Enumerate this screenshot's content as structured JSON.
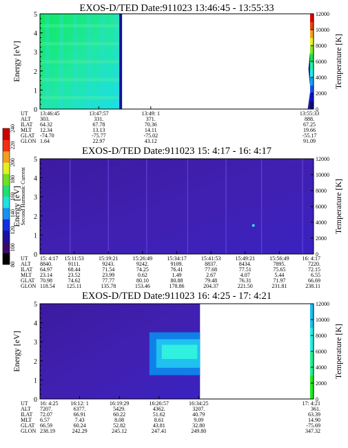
{
  "chart_data": [
    {
      "type": "heatmap",
      "title": "EXOS-D/TED   Date:911023  13:46:45 - 13:55:33",
      "ylabel": "Energy [eV]",
      "ylim": [
        0,
        5
      ],
      "y_ticks": [
        "0",
        "1",
        "2",
        "3",
        "4",
        "5"
      ],
      "right_label": "Temperature [K]",
      "right_ylim": [
        0,
        12000
      ],
      "right_ticks": [
        "0",
        "2000",
        "4000",
        "6000",
        "8000",
        "10000",
        "12000"
      ],
      "colorbar_colors": [
        "#0a0a7a",
        "#1010c8",
        "#1a4cf0",
        "#16a0f0",
        "#1cf0ee",
        "#20f0a0",
        "#20e040",
        "#80e820",
        "#e8f020",
        "#f0a020",
        "#f04010",
        "#e00000"
      ],
      "colorbar_fraction": 0.05,
      "fill_end_fraction": 0.3,
      "fill_colors": [
        "#10e860",
        "#20e8a0",
        "#18e0e8"
      ],
      "temperature_trace": true,
      "row_labels": [
        "UT",
        "ALT",
        "ILAT",
        "MLT",
        "GLAT",
        "GLON"
      ],
      "rows": [
        [
          "13:46:45",
          "13:47:57",
          "13:49:  1",
          "13:55:33"
        ],
        [
          "303.",
          "331.",
          "371.",
          "888."
        ],
        [
          "64.32",
          "67.78",
          "70.36",
          "67.25"
        ],
        [
          "12.34",
          "13.13",
          "14.11",
          "19.66"
        ],
        [
          "-74.70",
          "-75.77",
          "-75.02",
          "-55.17"
        ],
        [
          "1.64",
          "22.97",
          "43.12",
          "91.09"
        ]
      ],
      "row_positions": [
        0,
        0.215,
        0.405,
        0.985
      ]
    },
    {
      "type": "heatmap",
      "title": "EXOS-D/TED   Date:911023  15: 4:17 - 16: 4:17",
      "ylabel": "Energy [eV]",
      "ylim": [
        0,
        5
      ],
      "y_ticks": [
        "0",
        "1",
        "2",
        "3",
        "4",
        "5"
      ],
      "right_label": "Temperature [K]",
      "right_ylim": [
        0,
        12000
      ],
      "right_ticks": [
        "0",
        "2000",
        "4000",
        "6000",
        "8000",
        "10000",
        "12000"
      ],
      "fill_end_fraction": 1.0,
      "fill_colors": [
        "#3c1aa0",
        "#4020b0",
        "#3a22c0"
      ],
      "row_labels": [
        "UT",
        "ALT",
        "ILAT",
        "MLT",
        "GLAT",
        "GLON"
      ],
      "rows": [
        [
          "15: 4:17",
          "15:11:53",
          "15:19:21",
          "15:26:49",
          "15:34:17",
          "15:41:53",
          "15:49:21",
          "15:56:49",
          "16: 4:17"
        ],
        [
          "8840.",
          "9111.",
          "9243.",
          "9242.",
          "9109.",
          "8837.",
          "8434.",
          "7895.",
          "7220."
        ],
        [
          "64.97",
          "68.44",
          "71.54",
          "74.25",
          "76.41",
          "77.68",
          "77.51",
          "75.65",
          "72.15"
        ],
        [
          "23.14",
          "23.52",
          "23.99",
          "0.62",
          "1.49",
          "2.67",
          "4.07",
          "5.44",
          "6.55"
        ],
        [
          "70.98",
          "74.62",
          "77.77",
          "80.10",
          "80.88",
          "79.48",
          "76.31",
          "71.97",
          "66.69"
        ],
        [
          "118.54",
          "125.11",
          "135.78",
          "153.46",
          "178.86",
          "204.37",
          "221.50",
          "231.81",
          "238.11"
        ]
      ],
      "row_positions": [
        0,
        0.125,
        0.25,
        0.375,
        0.5,
        0.625,
        0.75,
        0.875,
        1
      ]
    },
    {
      "type": "heatmap",
      "title": "EXOS-D/TED   Date:911023  16: 4:25 - 17: 4:21",
      "ylabel": "Energy [eV]",
      "ylim": [
        0,
        5
      ],
      "y_ticks": [
        "0",
        "1",
        "2",
        "3",
        "4",
        "5"
      ],
      "right_label": "Temperature [K]",
      "right_ylim": [
        0,
        12000
      ],
      "right_ticks": [
        "0",
        "2000",
        "4000",
        "6000",
        "8000",
        "10000",
        "12000"
      ],
      "fill_end_fraction": 0.585,
      "fill_colors": [
        "#3c1aa0",
        "#4020b0",
        "#3a22c0"
      ],
      "colorbar_colors": [
        "#20e820",
        "#20f090",
        "#20f0e0",
        "#18c0f0"
      ],
      "colorbar_fraction": 0.05,
      "row_labels": [
        "UT",
        "ALT",
        "ILAT",
        "MLT",
        "GLAT",
        "GLON"
      ],
      "rows": [
        [
          "16: 4:25",
          "16:12:  1",
          "16:19:29",
          "16:26:57",
          "16:34:25",
          "17: 4:21"
        ],
        [
          "7207.",
          "6377.",
          "5429.",
          "4362.",
          "3207.",
          "361."
        ],
        [
          "72.07",
          "66.91",
          "60.22",
          "51.62",
          "40.79",
          "63.39"
        ],
        [
          "6.57",
          "7.43",
          "8.08",
          "8.61",
          "9.09",
          "14.90"
        ],
        [
          "66.59",
          "60.24",
          "52.82",
          "43.81",
          "32.80",
          "-75.69"
        ],
        [
          "238.19",
          "242.29",
          "245.12",
          "247.41",
          "249.80",
          "347.32"
        ]
      ],
      "row_positions": [
        0,
        0.145,
        0.29,
        0.435,
        0.58,
        1
      ]
    }
  ],
  "side_colorbar": {
    "label": "Second Harmonic Current",
    "ticks": [
      "80",
      "100",
      "120",
      "140",
      "160",
      "180",
      "200",
      "220",
      "240"
    ],
    "colors": [
      "#000000",
      "#3a0a6a",
      "#1a10a0",
      "#1030e0",
      "#1890f0",
      "#20e0e0",
      "#20e070",
      "#70e020",
      "#e0f020",
      "#f0a020",
      "#f03010",
      "#d00000"
    ]
  }
}
